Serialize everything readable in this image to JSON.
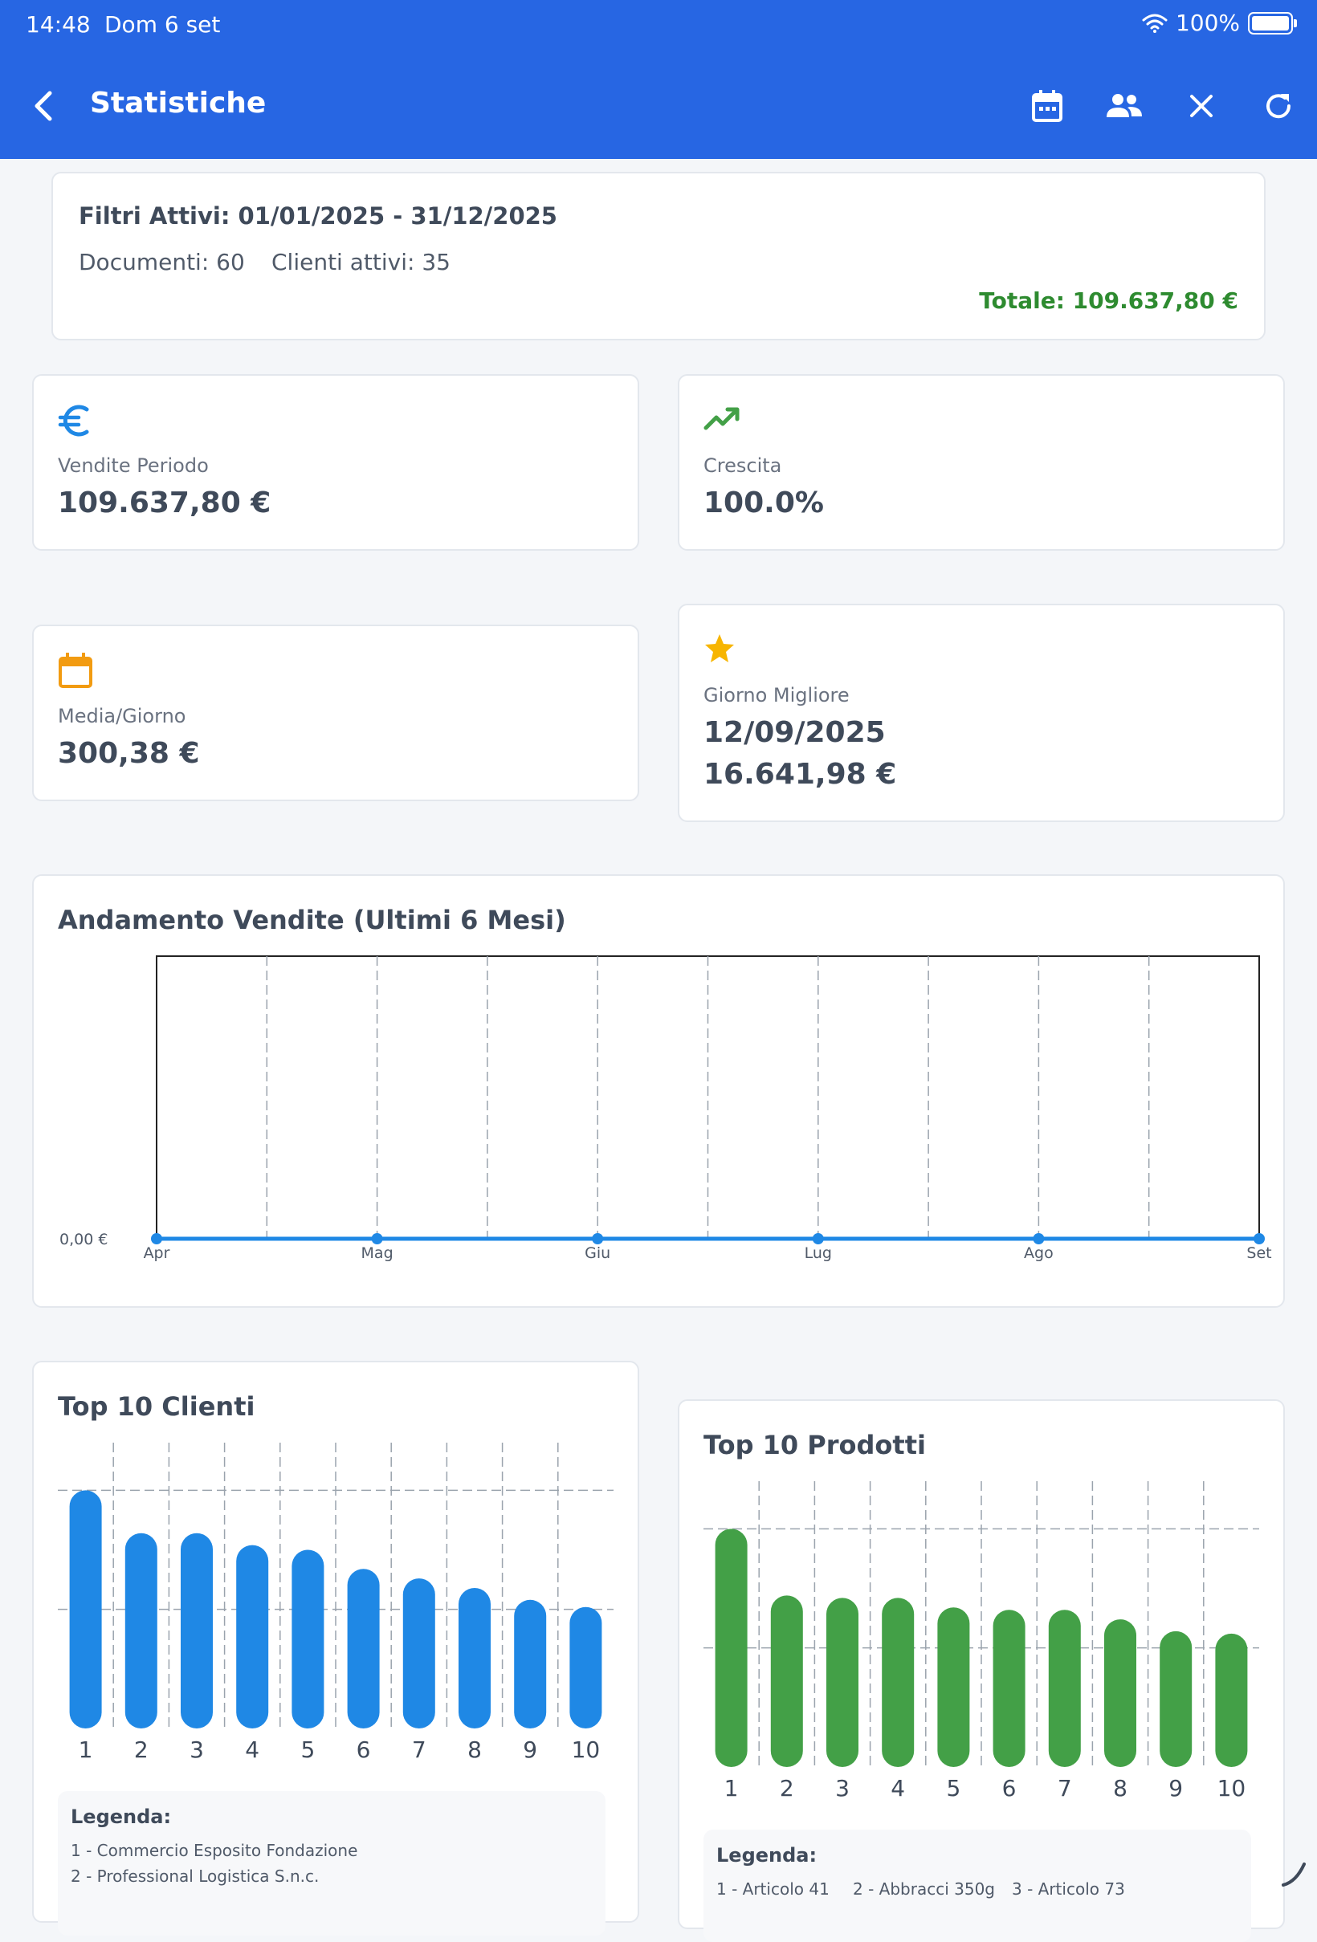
{
  "status": {
    "time": "14:48",
    "date": "Dom 6 set",
    "battery": "100%"
  },
  "appbar": {
    "title": "Statistiche",
    "icons": [
      "chevron-left-icon",
      "calendar-icon",
      "people-icon",
      "close-icon",
      "refresh-icon"
    ]
  },
  "filters": {
    "title": "Filtri Attivi: 01/01/2025 - 31/12/2025",
    "documents": "Documenti: 60",
    "clients": "Clienti attivi: 35",
    "total": "Totale: 109.637,80 €"
  },
  "kpis": {
    "sales": {
      "icon": "euro-icon",
      "label": "Vendite Periodo",
      "value": "109.637,80 €"
    },
    "growth": {
      "icon": "trending-up-icon",
      "label": "Crescita",
      "value": "100.0%"
    },
    "daily": {
      "icon": "calendar-icon",
      "label": "Media/Giorno",
      "value": "300,38 €"
    },
    "best": {
      "icon": "star-icon",
      "label": "Giorno Migliore",
      "date": "12/09/2025",
      "value": "16.641,98 €"
    }
  },
  "colors": {
    "accent": "#2766e3",
    "line": "#1f88e5",
    "clients_bar": "#1f88e5",
    "products_bar": "#43a047",
    "total_green": "#2e8b30",
    "star": "#f7b500",
    "calendar": "#f29b11"
  },
  "chart_data": [
    {
      "type": "line",
      "title": "Andamento Vendite (Ultimi 6 Mesi)",
      "categories": [
        "Apr",
        "Mag",
        "Giu",
        "Lug",
        "Ago",
        "Set"
      ],
      "values": [
        0,
        0,
        0,
        0,
        0,
        0
      ],
      "ytick": "0,00 €",
      "ylim": [
        0,
        1
      ],
      "grid": "vertical-dashed"
    },
    {
      "type": "bar",
      "title": "Top 10 Clienti",
      "categories": [
        "1",
        "2",
        "3",
        "4",
        "5",
        "6",
        "7",
        "8",
        "9",
        "10"
      ],
      "values": [
        100,
        82,
        82,
        77,
        75,
        67,
        63,
        59,
        54,
        51
      ],
      "ylim": [
        0,
        120
      ],
      "legend_title": "Legenda:",
      "legend": [
        "1 - Commercio Esposito Fondazione",
        "2 - Professional Logistica S.n.c."
      ]
    },
    {
      "type": "bar",
      "title": "Top 10 Prodotti",
      "categories": [
        "1",
        "2",
        "3",
        "4",
        "5",
        "6",
        "7",
        "8",
        "9",
        "10"
      ],
      "values": [
        100,
        72,
        71,
        71,
        67,
        66,
        66,
        62,
        57,
        56
      ],
      "ylim": [
        0,
        120
      ],
      "legend_title": "Legenda:",
      "legend": [
        "1 - Articolo 41",
        "2 - Abbracci 350g",
        "3 - Articolo 73"
      ]
    }
  ]
}
